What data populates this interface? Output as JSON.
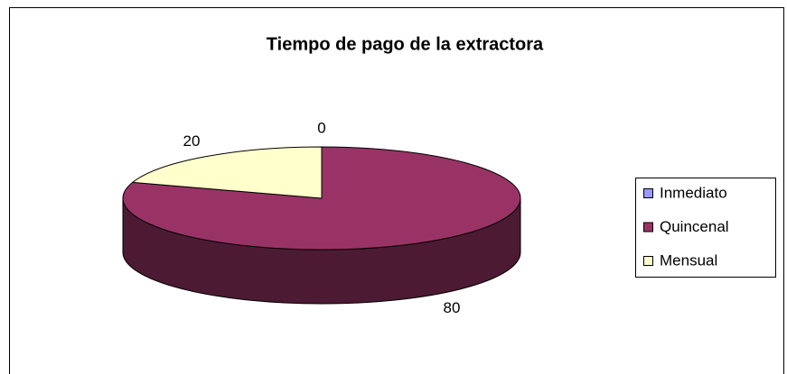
{
  "chart_data": {
    "type": "pie",
    "title": "Tiempo de pago de la extractora",
    "categories": [
      "Inmediato",
      "Quincenal",
      "Mensual"
    ],
    "values": [
      0,
      80,
      20
    ],
    "colors": [
      "#9999FF",
      "#993366",
      "#FFFFCC"
    ],
    "legend": "right"
  }
}
